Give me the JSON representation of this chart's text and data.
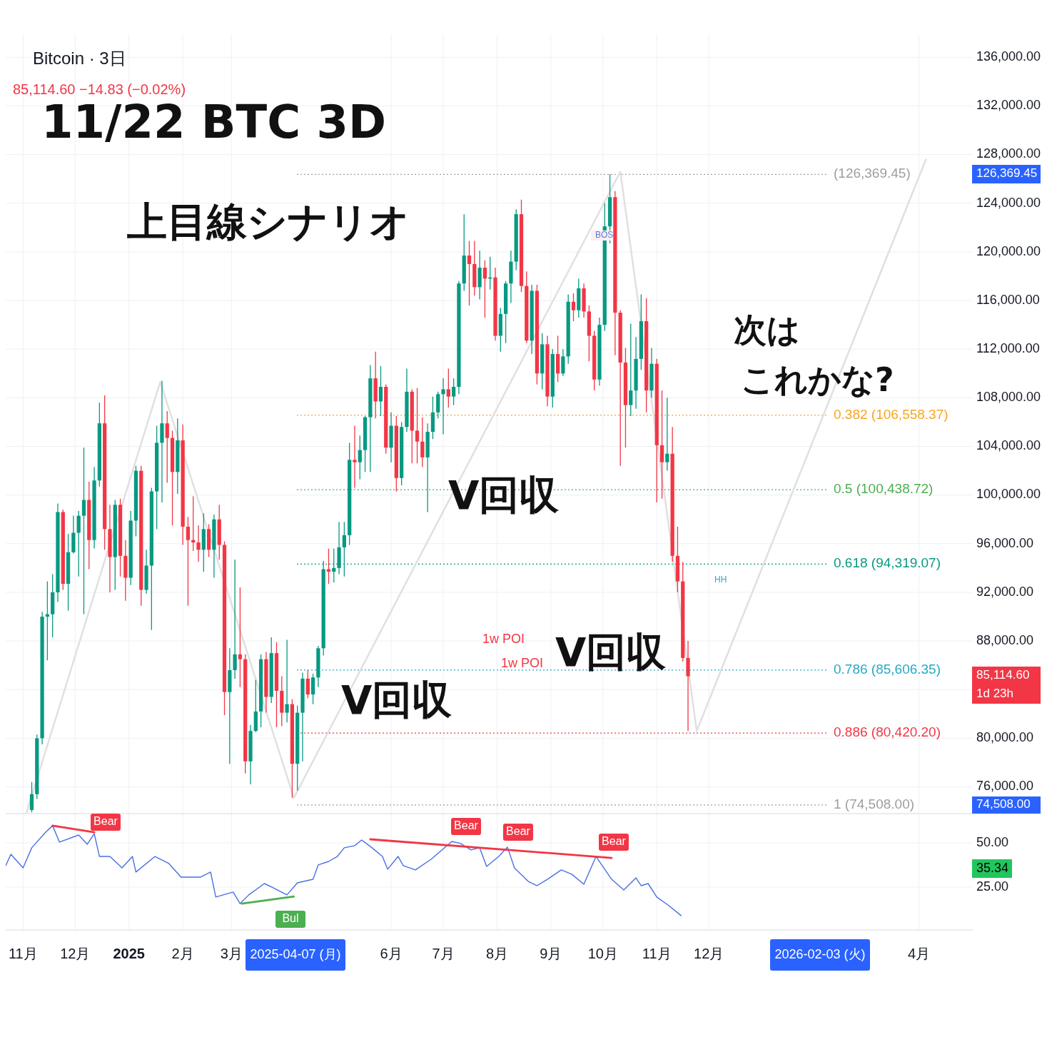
{
  "chart_data": [
    {
      "type": "candlestick",
      "title": "Bitcoin · 3日",
      "subtitle": "85,114.60 −14.83 (−0.02%)",
      "x": [
        "2024-11-06",
        "2024-11-09",
        "2024-11-12",
        "2024-11-15",
        "2024-11-18",
        "2024-11-21",
        "2024-11-24",
        "2024-11-27",
        "2024-11-30",
        "2024-12-03",
        "2024-12-06",
        "2024-12-09",
        "2024-12-12",
        "2024-12-15",
        "2024-12-18",
        "2024-12-21",
        "2024-12-24",
        "2024-12-27",
        "2024-12-30",
        "2025-01-02",
        "2025-01-05",
        "2025-01-08",
        "2025-01-11",
        "2025-01-14",
        "2025-01-17",
        "2025-01-20",
        "2025-01-23",
        "2025-01-26",
        "2025-01-29",
        "2025-02-01",
        "2025-02-04",
        "2025-02-07",
        "2025-02-10",
        "2025-02-13",
        "2025-02-16",
        "2025-02-19",
        "2025-02-22",
        "2025-02-25",
        "2025-02-28",
        "2025-03-03",
        "2025-03-06",
        "2025-03-09",
        "2025-03-12",
        "2025-03-15",
        "2025-03-18",
        "2025-03-21",
        "2025-03-24",
        "2025-03-27",
        "2025-03-30",
        "2025-04-02",
        "2025-04-05",
        "2025-04-08",
        "2025-04-11",
        "2025-04-14",
        "2025-04-17",
        "2025-04-20",
        "2025-04-23",
        "2025-04-26",
        "2025-04-29",
        "2025-05-02",
        "2025-05-05",
        "2025-05-08",
        "2025-05-11",
        "2025-05-14",
        "2025-05-17",
        "2025-05-20",
        "2025-05-23",
        "2025-05-26",
        "2025-05-29",
        "2025-06-01",
        "2025-06-04",
        "2025-06-07",
        "2025-06-10",
        "2025-06-13",
        "2025-06-16",
        "2025-06-19",
        "2025-06-22",
        "2025-06-25",
        "2025-06-28",
        "2025-07-01",
        "2025-07-04",
        "2025-07-07",
        "2025-07-10",
        "2025-07-13",
        "2025-07-16",
        "2025-07-19",
        "2025-07-22",
        "2025-07-25",
        "2025-07-28",
        "2025-07-31",
        "2025-08-03",
        "2025-08-06",
        "2025-08-09",
        "2025-08-12",
        "2025-08-15",
        "2025-08-18",
        "2025-08-21",
        "2025-08-24",
        "2025-08-27",
        "2025-08-30",
        "2025-09-02",
        "2025-09-05",
        "2025-09-08",
        "2025-09-11",
        "2025-09-14",
        "2025-09-17",
        "2025-09-20",
        "2025-09-23",
        "2025-09-26",
        "2025-09-29",
        "2025-10-02",
        "2025-10-05",
        "2025-10-08",
        "2025-10-11",
        "2025-10-14",
        "2025-10-17",
        "2025-10-20",
        "2025-10-23",
        "2025-10-26",
        "2025-10-29",
        "2025-11-01",
        "2025-11-04",
        "2025-11-07",
        "2025-11-10",
        "2025-11-13",
        "2025-11-16",
        "2025-11-19"
      ],
      "ohlc": [
        [
          74100,
          76400,
          73900,
          75400
        ],
        [
          75400,
          80300,
          75000,
          80000
        ],
        [
          80000,
          90400,
          79500,
          90000
        ],
        [
          90000,
          92900,
          86400,
          90200
        ],
        [
          90200,
          93500,
          88300,
          92000
        ],
        [
          92000,
          99300,
          91200,
          98600
        ],
        [
          98600,
          98800,
          92200,
          92700
        ],
        [
          92700,
          96800,
          90500,
          95300
        ],
        [
          95300,
          98300,
          95200,
          96900
        ],
        [
          96900,
          98700,
          93300,
          98300
        ],
        [
          98300,
          103900,
          90200,
          99600
        ],
        [
          99600,
          101100,
          93900,
          96300
        ],
        [
          96300,
          102300,
          95600,
          101200
        ],
        [
          101200,
          107600,
          100700,
          105900
        ],
        [
          105900,
          108200,
          95500,
          97200
        ],
        [
          97200,
          99200,
          92000,
          94900
        ],
        [
          94900,
          99600,
          92200,
          99200
        ],
        [
          99200,
          99700,
          93300,
          95000
        ],
        [
          95000,
          96300,
          91300,
          93200
        ],
        [
          93200,
          98700,
          92600,
          97900
        ],
        [
          97900,
          102400,
          96600,
          102000
        ],
        [
          102000,
          102400,
          90900,
          92200
        ],
        [
          92200,
          95500,
          91900,
          94200
        ],
        [
          94200,
          100600,
          88900,
          100300
        ],
        [
          100300,
          105700,
          97200,
          104300
        ],
        [
          104300,
          109400,
          99400,
          105900
        ],
        [
          105900,
          106900,
          101000,
          104700
        ],
        [
          104700,
          105300,
          97500,
          101900
        ],
        [
          101900,
          106300,
          100100,
          104500
        ],
        [
          104500,
          105800,
          95900,
          97400
        ],
        [
          97400,
          98200,
          90900,
          96300
        ],
        [
          96300,
          99900,
          95400,
          96100
        ],
        [
          96100,
          97500,
          94500,
          95500
        ],
        [
          95500,
          98500,
          93700,
          97200
        ],
        [
          97200,
          97600,
          94900,
          95500
        ],
        [
          95500,
          98400,
          93200,
          98000
        ],
        [
          98000,
          99200,
          94700,
          95900
        ],
        [
          95900,
          96200,
          81900,
          83800
        ],
        [
          83800,
          87400,
          77900,
          85600
        ],
        [
          85600,
          94700,
          84900,
          86900
        ],
        [
          86900,
          92400,
          84200,
          86500
        ],
        [
          86500,
          86900,
          77100,
          78100
        ],
        [
          78100,
          81100,
          76200,
          80600
        ],
        [
          80600,
          84800,
          80500,
          82200
        ],
        [
          82200,
          86900,
          80900,
          86500
        ],
        [
          86500,
          87100,
          82100,
          83400
        ],
        [
          83400,
          88300,
          82900,
          87000
        ],
        [
          87000,
          87900,
          80900,
          83900
        ],
        [
          83900,
          85100,
          81000,
          82100
        ],
        [
          82100,
          88100,
          81300,
          82800
        ],
        [
          82800,
          83200,
          75100,
          77900
        ],
        [
          77900,
          82700,
          75700,
          82100
        ],
        [
          82100,
          85400,
          78100,
          84900
        ],
        [
          84900,
          85600,
          83300,
          83600
        ],
        [
          83600,
          85300,
          82800,
          85000
        ],
        [
          85000,
          87600,
          84200,
          87400
        ],
        [
          87400,
          94600,
          86800,
          93900
        ],
        [
          93900,
          95600,
          92700,
          93700
        ],
        [
          93700,
          95600,
          92800,
          94000
        ],
        [
          94000,
          97800,
          93500,
          95700
        ],
        [
          95700,
          97800,
          93300,
          96700
        ],
        [
          96700,
          104300,
          95900,
          102900
        ],
        [
          102900,
          105700,
          100600,
          102700
        ],
        [
          102700,
          104900,
          101300,
          103700
        ],
        [
          103700,
          106500,
          101900,
          106400
        ],
        [
          106400,
          110700,
          101900,
          109600
        ],
        [
          109600,
          111800,
          106300,
          107700
        ],
        [
          107700,
          110600,
          106500,
          108900
        ],
        [
          108900,
          109100,
          103400,
          103900
        ],
        [
          103900,
          106800,
          102700,
          105700
        ],
        [
          105700,
          106500,
          100300,
          101400
        ],
        [
          101400,
          106000,
          100800,
          105600
        ],
        [
          105600,
          110400,
          105200,
          108500
        ],
        [
          108500,
          108700,
          102600,
          105300
        ],
        [
          105300,
          108800,
          102600,
          104400
        ],
        [
          104400,
          106400,
          102300,
          103100
        ],
        [
          103100,
          105900,
          98600,
          105200
        ],
        [
          105200,
          108100,
          104600,
          106800
        ],
        [
          106800,
          108500,
          106300,
          108300
        ],
        [
          108300,
          109600,
          105000,
          108700
        ],
        [
          108700,
          110400,
          107200,
          108100
        ],
        [
          108100,
          109600,
          107400,
          108900
        ],
        [
          108900,
          117600,
          108300,
          117400
        ],
        [
          117400,
          123100,
          116800,
          119700
        ],
        [
          119700,
          120900,
          115600,
          119000
        ],
        [
          119000,
          120900,
          116400,
          117100
        ],
        [
          117100,
          120100,
          116100,
          118700
        ],
        [
          118700,
          119300,
          114600,
          117800
        ],
        [
          117800,
          119600,
          116900,
          117900
        ],
        [
          117900,
          118700,
          112700,
          113100
        ],
        [
          113100,
          115400,
          111800,
          114900
        ],
        [
          114900,
          117600,
          112500,
          117400
        ],
        [
          117400,
          120100,
          115800,
          119200
        ],
        [
          119200,
          123500,
          118500,
          123100
        ],
        [
          123100,
          124300,
          116700,
          117200
        ],
        [
          117200,
          118400,
          112500,
          112700
        ],
        [
          112700,
          117300,
          111600,
          116800
        ],
        [
          116800,
          117300,
          109100,
          110000
        ],
        [
          110000,
          113300,
          108700,
          112400
        ],
        [
          112400,
          113100,
          107300,
          108100
        ],
        [
          108100,
          112000,
          107200,
          111600
        ],
        [
          111600,
          113100,
          109300,
          110000
        ],
        [
          110000,
          112000,
          109800,
          111400
        ],
        [
          111400,
          116500,
          110800,
          115900
        ],
        [
          115900,
          116600,
          114300,
          115200
        ],
        [
          115200,
          117800,
          114600,
          117000
        ],
        [
          117000,
          117400,
          114600,
          115100
        ],
        [
          115100,
          115600,
          111000,
          113100
        ],
        [
          113100,
          113500,
          108600,
          109500
        ],
        [
          109500,
          114600,
          109000,
          114000
        ],
        [
          114000,
          124000,
          113500,
          122100
        ],
        [
          122100,
          126400,
          120700,
          124500
        ],
        [
          124500,
          125000,
          111500,
          115000
        ],
        [
          115000,
          115200,
          102400,
          110900
        ],
        [
          110900,
          112100,
          103900,
          107400
        ],
        [
          107400,
          114100,
          106500,
          108600
        ],
        [
          108600,
          113000,
          107100,
          111200
        ],
        [
          111200,
          116500,
          110300,
          114300
        ],
        [
          114300,
          116200,
          106800,
          108600
        ],
        [
          108600,
          112100,
          108000,
          110800
        ],
        [
          110800,
          111200,
          99400,
          104100
        ],
        [
          104100,
          108600,
          99700,
          102700
        ],
        [
          102700,
          108000,
          102000,
          103400
        ],
        [
          103400,
          105600,
          94500,
          95000
        ],
        [
          95000,
          97400,
          92000,
          92900
        ],
        [
          92900,
          94500,
          86300,
          86600
        ],
        [
          86600,
          88000,
          80600,
          85100
        ]
      ],
      "series": [
        {
          "type": "line",
          "color": "#e0e0e0",
          "x": [
            "2024-11-03",
            "2025-01-19",
            "2025-04-06",
            "2025-10-11",
            "2025-11-24",
            "2026-04-05"
          ],
          "values": [
            73900,
            109300,
            75100,
            126600,
            80600,
            127600
          ]
        }
      ],
      "xlim": [
        "2024-10-22",
        "2026-05-02"
      ],
      "xticks": [
        {
          "value": "2024-11-01",
          "label": null
        },
        {
          "value": "2024-12-01",
          "label": null
        },
        {
          "value": "2025-01-01",
          "label": null
        },
        {
          "value": "2025-02-01",
          "label": null
        },
        {
          "value": "2025-03-01",
          "label": null
        },
        {
          "value": "2025-06-01",
          "label": null
        },
        {
          "value": "2025-07-01",
          "label": null
        },
        {
          "value": "2025-08-01",
          "label": null
        },
        {
          "value": "2025-09-01",
          "label": null
        },
        {
          "value": "2025-10-01",
          "label": null
        },
        {
          "value": "2025-11-01",
          "label": null
        },
        {
          "value": "2025-12-01",
          "label": null
        },
        {
          "value": "2026-04-01",
          "label": null
        }
      ],
      "ylim": [
        73800,
        137900
      ],
      "yticks": [
        {
          "value": 76000,
          "label": "76,000.00"
        },
        {
          "value": 80000,
          "label": "80,000.00"
        },
        {
          "value": 84000,
          "label": null
        },
        {
          "value": 88000,
          "label": "88,000.00"
        },
        {
          "value": 92000,
          "label": "92,000.00"
        },
        {
          "value": 96000,
          "label": "96,000.00"
        },
        {
          "value": 100000,
          "label": "100,000.00"
        },
        {
          "value": 104000,
          "label": "104,000.00"
        },
        {
          "value": 108000,
          "label": "108,000.00"
        },
        {
          "value": 112000,
          "label": "112,000.00"
        },
        {
          "value": 116000,
          "label": "116,000.00"
        },
        {
          "value": 120000,
          "label": "120,000.00"
        },
        {
          "value": 124000,
          "label": "124,000.00"
        },
        {
          "value": 128000,
          "label": "128,000.00"
        },
        {
          "value": 132000,
          "label": "132,000.00"
        },
        {
          "value": 136000,
          "label": "136,000.00"
        }
      ],
      "tick_labels": "y",
      "grid": true,
      "ref_lines": [
        {
          "axis": "y",
          "value": 126369.45,
          "label": "(126,369.45)",
          "color": "#9e9e9e",
          "line_style": "dotted"
        },
        {
          "axis": "y",
          "value": 106558.37,
          "label": "0.382 (106,558.37)",
          "color": "#f5a623",
          "line_style": "dotted"
        },
        {
          "axis": "y",
          "value": 100438.72,
          "label": "0.5 (100,438.72)",
          "color": "#4caf50",
          "line_style": "dotted"
        },
        {
          "axis": "y",
          "value": 94319.07,
          "label": "0.618 (94,319.07)",
          "color": "#089981",
          "line_style": "dotted"
        },
        {
          "axis": "y",
          "value": 85606.35,
          "label": "0.786 (85,606.35)",
          "color": "#26a9c4",
          "line_style": "dotted"
        },
        {
          "axis": "y",
          "value": 80420.2,
          "label": "0.886 (80,420.20)",
          "color": "#f23645",
          "line_style": "dotted"
        },
        {
          "axis": "y",
          "value": 74508,
          "label": "1 (74,508.00)",
          "color": "#9e9e9e",
          "line_style": "dotted"
        }
      ],
      "annotations": [
        "11/22 BTC 3D",
        "上目線シナリオ",
        "次は",
        "これかな?",
        "V回収",
        "V回収",
        "V回収",
        "1w POI",
        "1w POI",
        "HH",
        "BOS",
        "126,369.45",
        "85,114.60",
        "1d 23h",
        "74,508.00"
      ]
    },
    {
      "type": "line",
      "series": [
        {
          "color": "#4a6fe3",
          "x": [
            "2024-10-22",
            "2024-10-25",
            "2024-11-01",
            "2024-11-06",
            "2024-11-14",
            "2024-11-18",
            "2024-11-22",
            "2024-12-03",
            "2024-12-08",
            "2024-12-12",
            "2024-12-15",
            "2024-12-21",
            "2024-12-28",
            "2025-01-03",
            "2025-01-05",
            "2025-01-16",
            "2025-01-24",
            "2025-01-31",
            "2025-02-11",
            "2025-02-17",
            "2025-02-20",
            "2025-03-02",
            "2025-03-06",
            "2025-03-11",
            "2025-03-20",
            "2025-03-25",
            "2025-04-02",
            "2025-04-08",
            "2025-04-17",
            "2025-04-20",
            "2025-04-26",
            "2025-05-01",
            "2025-05-05",
            "2025-05-11",
            "2025-05-15",
            "2025-05-21",
            "2025-05-27",
            "2025-05-30",
            "2025-06-05",
            "2025-06-08",
            "2025-06-15",
            "2025-06-24",
            "2025-07-06",
            "2025-07-11",
            "2025-07-17",
            "2025-07-22",
            "2025-07-26",
            "2025-08-02",
            "2025-08-07",
            "2025-08-11",
            "2025-08-19",
            "2025-08-24",
            "2025-08-30",
            "2025-09-07",
            "2025-09-13",
            "2025-09-20",
            "2025-09-27",
            "2025-10-06",
            "2025-10-13",
            "2025-10-20",
            "2025-10-23",
            "2025-10-27",
            "2025-11-01",
            "2025-11-08",
            "2025-11-15"
          ],
          "values": [
            37.1,
            43.5,
            35.9,
            47.2,
            56.0,
            59.7,
            50.4,
            54.4,
            49.2,
            55.2,
            42.3,
            42.3,
            35.9,
            42.3,
            33.5,
            42.3,
            38.3,
            30.6,
            30.6,
            33.5,
            19.4,
            22.2,
            15.7,
            20.6,
            27.0,
            24.6,
            20.6,
            27.4,
            29.4,
            37.5,
            39.5,
            42.3,
            47.2,
            48.4,
            51.6,
            47.2,
            42.3,
            35.1,
            42.3,
            37.1,
            34.7,
            40.7,
            50.8,
            49.6,
            46.0,
            47.2,
            36.7,
            42.3,
            47.6,
            35.9,
            28.2,
            25.8,
            29.4,
            34.7,
            32.3,
            26.6,
            42.3,
            29.4,
            23.4,
            30.2,
            25.8,
            27.0,
            19.4,
            14.5,
            8.9
          ]
        },
        {
          "color": "#f23645",
          "x": [
            "2024-11-18",
            "2024-12-12"
          ],
          "values": [
            59.7,
            56.0
          ]
        },
        {
          "color": "#f23645",
          "x": [
            "2025-05-20",
            "2025-10-06"
          ],
          "values": [
            52.0,
            41.5
          ]
        },
        {
          "color": "#4caf50",
          "x": [
            "2025-03-07",
            "2025-04-06"
          ],
          "values": [
            15.7,
            19.7
          ]
        }
      ],
      "xlim": [
        "2024-10-22",
        "2026-05-02"
      ],
      "xticks": [
        {
          "value": "2024-11-01",
          "label": "11月"
        },
        {
          "value": "2024-12-01",
          "label": "12月"
        },
        {
          "value": "2025-01-01",
          "label": "2025"
        },
        {
          "value": "2025-02-01",
          "label": "2月"
        },
        {
          "value": "2025-03-01",
          "label": "3月"
        },
        {
          "value": "2025-06-01",
          "label": "6月"
        },
        {
          "value": "2025-07-01",
          "label": "7月"
        },
        {
          "value": "2025-08-01",
          "label": "8月"
        },
        {
          "value": "2025-09-01",
          "label": "9月"
        },
        {
          "value": "2025-10-01",
          "label": "10月"
        },
        {
          "value": "2025-11-01",
          "label": "11月"
        },
        {
          "value": "2025-12-01",
          "label": "12月"
        },
        {
          "value": "2026-04-01",
          "label": "4月"
        }
      ],
      "ylim": [
        0.8,
        66.1
      ],
      "yticks": [
        {
          "value": 25,
          "label": "25.00"
        },
        {
          "value": 50,
          "label": "50.00"
        }
      ],
      "grid": true,
      "annotations": [
        "Bear",
        "Bear",
        "Bear",
        "Bear",
        "Bul",
        "35.34",
        "2025-04-07 (月)",
        "2026-02-03 (火)"
      ]
    }
  ]
}
